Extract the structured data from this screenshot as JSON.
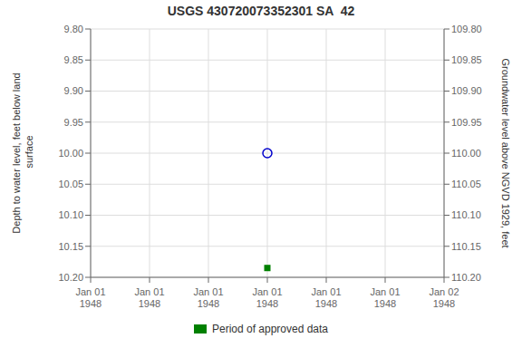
{
  "chart_data": {
    "type": "scatter",
    "title": "USGS 430720073352301 SA  42",
    "y_label": "Depth to water level, feet below land\n surface",
    "y2_label": "Groundwater level above NGVD 1929, feet",
    "categories": [
      "Jan 01\n1948",
      "Jan 01\n1948",
      "Jan 01\n1948",
      "Jan 01\n1948",
      "Jan 01\n1948",
      "Jan 01\n1948",
      "Jan 02\n1948"
    ],
    "series": [
      {
        "color": "#0000cc",
        "marker": "circle",
        "values": [
          null,
          null,
          null,
          10.0,
          null,
          null,
          null
        ]
      },
      {
        "name": "Period of approved data",
        "color": "#008000",
        "marker": "square",
        "values": [
          null,
          null,
          null,
          10.185,
          null,
          null,
          null
        ]
      }
    ],
    "ylim": [
      10.2,
      9.8
    ],
    "yticks": [
      {
        "value": 9.8,
        "label": "9.80"
      },
      {
        "value": 9.85,
        "label": "9.85"
      },
      {
        "value": 9.9,
        "label": "9.90"
      },
      {
        "value": 9.95,
        "label": "9.95"
      },
      {
        "value": 10.0,
        "label": "10.00"
      },
      {
        "value": 10.05,
        "label": "10.05"
      },
      {
        "value": 10.1,
        "label": "10.10"
      },
      {
        "value": 10.15,
        "label": "10.15"
      },
      {
        "value": 10.2,
        "label": "10.20"
      }
    ],
    "y2lim": [
      110.2,
      109.8
    ],
    "y2ticks": [
      {
        "value": 110.2,
        "label": "110.20"
      },
      {
        "value": 110.15,
        "label": "110.15"
      },
      {
        "value": 110.1,
        "label": "110.10"
      },
      {
        "value": 110.05,
        "label": "110.05"
      },
      {
        "value": 110.0,
        "label": "110.00"
      },
      {
        "value": 109.95,
        "label": "109.95"
      },
      {
        "value": 109.9,
        "label": "109.90"
      },
      {
        "value": 109.85,
        "label": "109.85"
      },
      {
        "value": 109.8,
        "label": "109.80"
      }
    ],
    "grid": true,
    "legend": "bottom"
  }
}
